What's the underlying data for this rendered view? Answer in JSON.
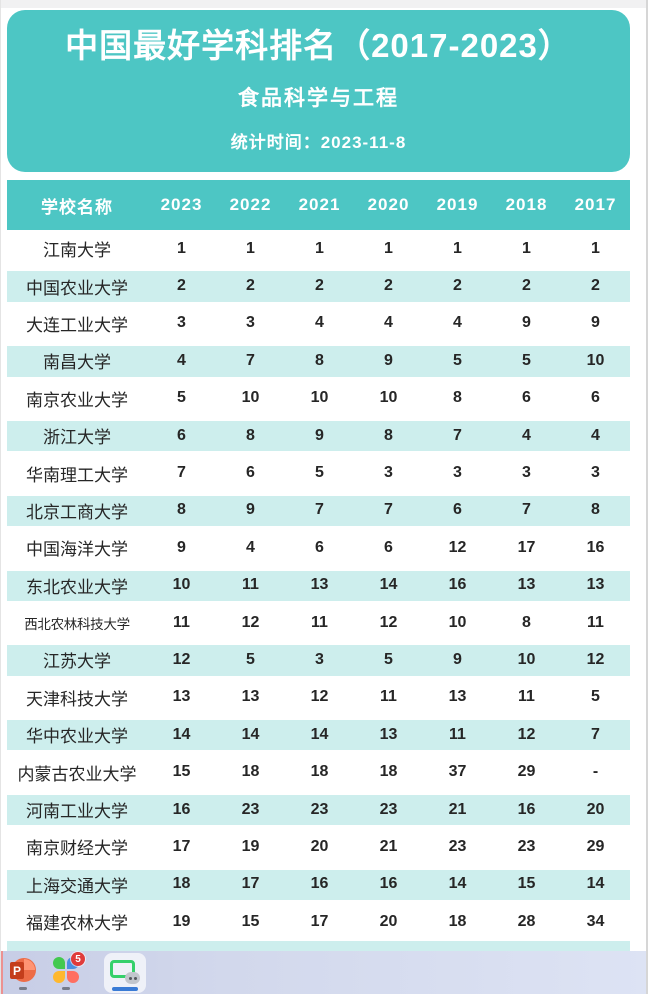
{
  "header": {
    "title": "中国最好学科排名（2017-2023）",
    "subtitle": "食品科学与工程",
    "stat_time": "统计时间：2023-11-8"
  },
  "table": {
    "columns": [
      "学校名称",
      "2023",
      "2022",
      "2021",
      "2020",
      "2019",
      "2018",
      "2017"
    ],
    "rows": [
      {
        "school": "江南大学",
        "ranks": [
          "1",
          "1",
          "1",
          "1",
          "1",
          "1",
          "1"
        ]
      },
      {
        "school": "中国农业大学",
        "ranks": [
          "2",
          "2",
          "2",
          "2",
          "2",
          "2",
          "2"
        ]
      },
      {
        "school": "大连工业大学",
        "ranks": [
          "3",
          "3",
          "4",
          "4",
          "4",
          "9",
          "9"
        ]
      },
      {
        "school": "南昌大学",
        "ranks": [
          "4",
          "7",
          "8",
          "9",
          "5",
          "5",
          "10"
        ]
      },
      {
        "school": "南京农业大学",
        "ranks": [
          "5",
          "10",
          "10",
          "10",
          "8",
          "6",
          "6"
        ]
      },
      {
        "school": "浙江大学",
        "ranks": [
          "6",
          "8",
          "9",
          "8",
          "7",
          "4",
          "4"
        ]
      },
      {
        "school": "华南理工大学",
        "ranks": [
          "7",
          "6",
          "5",
          "3",
          "3",
          "3",
          "3"
        ]
      },
      {
        "school": "北京工商大学",
        "ranks": [
          "8",
          "9",
          "7",
          "7",
          "6",
          "7",
          "8"
        ]
      },
      {
        "school": "中国海洋大学",
        "ranks": [
          "9",
          "4",
          "6",
          "6",
          "12",
          "17",
          "16"
        ]
      },
      {
        "school": "东北农业大学",
        "ranks": [
          "10",
          "11",
          "13",
          "14",
          "16",
          "13",
          "13"
        ]
      },
      {
        "school": "西北农林科技大学",
        "ranks": [
          "11",
          "12",
          "11",
          "12",
          "10",
          "8",
          "11"
        ]
      },
      {
        "school": "江苏大学",
        "ranks": [
          "12",
          "5",
          "3",
          "5",
          "9",
          "10",
          "12"
        ]
      },
      {
        "school": "天津科技大学",
        "ranks": [
          "13",
          "13",
          "12",
          "11",
          "13",
          "11",
          "5"
        ]
      },
      {
        "school": "华中农业大学",
        "ranks": [
          "14",
          "14",
          "14",
          "13",
          "11",
          "12",
          "7"
        ]
      },
      {
        "school": "内蒙古农业大学",
        "ranks": [
          "15",
          "18",
          "18",
          "18",
          "37",
          "29",
          "-"
        ]
      },
      {
        "school": "河南工业大学",
        "ranks": [
          "16",
          "23",
          "23",
          "23",
          "21",
          "16",
          "20"
        ]
      },
      {
        "school": "南京财经大学",
        "ranks": [
          "17",
          "19",
          "20",
          "21",
          "23",
          "23",
          "29"
        ]
      },
      {
        "school": "上海交通大学",
        "ranks": [
          "18",
          "17",
          "16",
          "16",
          "14",
          "15",
          "14"
        ]
      },
      {
        "school": "福建农林大学",
        "ranks": [
          "19",
          "15",
          "17",
          "20",
          "18",
          "28",
          "34"
        ]
      }
    ]
  },
  "taskbar": {
    "powerpoint_letter": "P",
    "badge_count": "5"
  },
  "colors": {
    "teal": "#4dc6c4",
    "teal_row_light": "#cdeeed",
    "taskbar_bg": "#d2d8ec",
    "badge_red": "#e03b3b",
    "active_indicator_blue": "#3a7bd5",
    "powerpoint_orange": "#ed6c47",
    "screen_frame_green": "#35d06a"
  }
}
